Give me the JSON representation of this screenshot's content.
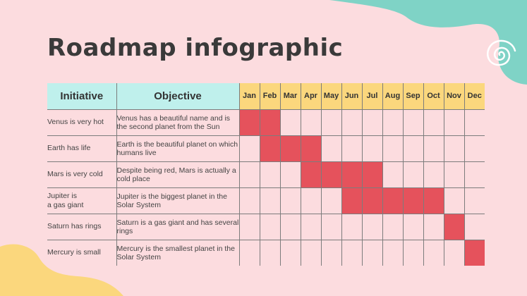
{
  "title": "Roadmap infographic",
  "headers": {
    "initiative": "Initiative",
    "objective": "Objective"
  },
  "months": [
    "Jan",
    "Feb",
    "Mar",
    "Apr",
    "May",
    "Jun",
    "Jul",
    "Aug",
    "Sep",
    "Oct",
    "Nov",
    "Dec"
  ],
  "colors": {
    "background": "#fcdcdf",
    "bar": "#e5525c",
    "month_header": "#fbd77d",
    "col_header": "#bff0ec",
    "blob_teal": "#7fd3c6",
    "blob_yellow": "#fbd77d"
  },
  "rows": [
    {
      "initiative": "Venus is very hot",
      "objective": "Venus has a beautiful name and is the second planet from the Sun",
      "start": 1,
      "end": 2
    },
    {
      "initiative": "Earth has life",
      "objective": "Earth is the beautiful planet on which humans live",
      "start": 2,
      "end": 4
    },
    {
      "initiative": "Mars is very cold",
      "objective": "Despite being red, Mars is actually a cold place",
      "start": 4,
      "end": 7
    },
    {
      "initiative": "Jupiter is\na gas giant",
      "objective": "Jupiter is the biggest planet in the Solar System",
      "start": 6,
      "end": 10
    },
    {
      "initiative": "Saturn has rings",
      "objective": "Saturn is a gas giant and has several rings",
      "start": 11,
      "end": 11
    },
    {
      "initiative": "Mercury is small",
      "objective": "Mercury is the smallest planet in the Solar System",
      "start": 12,
      "end": 12
    }
  ]
}
